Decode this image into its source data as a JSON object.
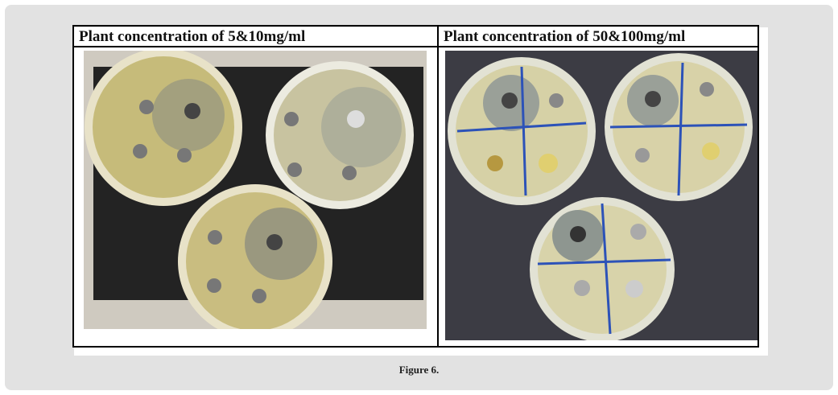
{
  "figure": {
    "headers": [
      "Plant concentration of 5&10mg/ml",
      "Plant concentration of 50&100mg/ml"
    ],
    "caption": "Figure 6."
  }
}
